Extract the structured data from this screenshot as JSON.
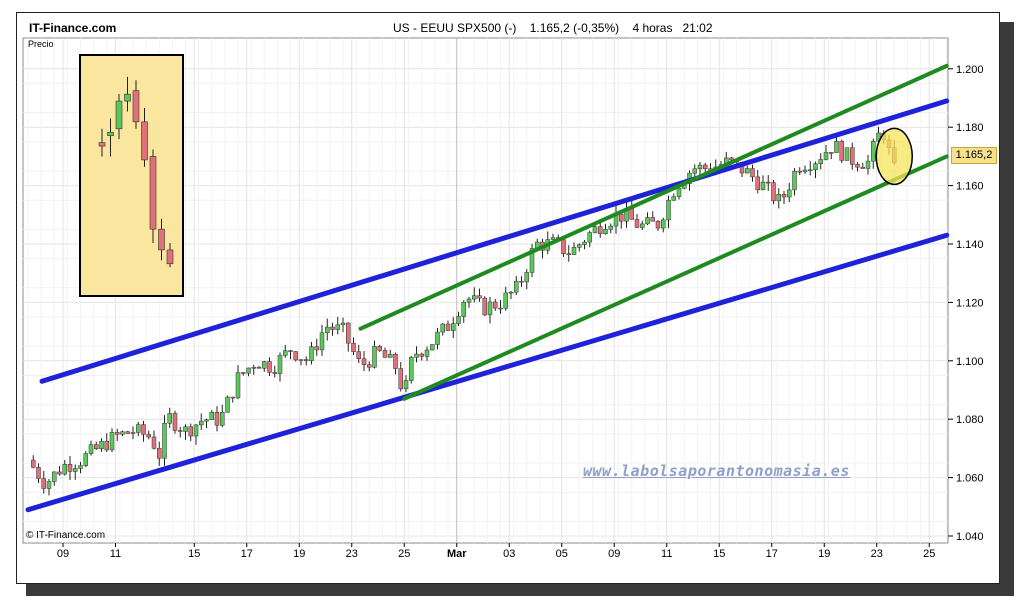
{
  "header": {
    "site": "IT-Finance.com",
    "instrument": "US - EEUU SPX500 (-)",
    "last_value": "1.165,2 (-0,35%)",
    "timeframe": "4 horas",
    "time": "21:02"
  },
  "y_axis_label": "Precio",
  "copyright": "© IT-Finance.com",
  "watermark": "www.labolsaporantonomasia.es",
  "last_price_tag": "1.165,2",
  "colors": {
    "up_candle": "#5cc85c",
    "down_candle": "#e0707a",
    "blue_channel": "#1f22d8",
    "green_channel": "#1f8a1f",
    "inset_bg": "#fbe6a0",
    "highlight_ellipse": "#f5e45a",
    "grid": "#e4e4e4"
  },
  "chart_data": {
    "type": "candlestick",
    "timeframe": "4 horas",
    "ylim": [
      1.04,
      1.205
    ],
    "yticks": [
      "1.040",
      "1.060",
      "1.080",
      "1.100",
      "1.120",
      "1.140",
      "1.160",
      "1.180",
      "1.200"
    ],
    "ytick_values": [
      1.04,
      1.06,
      1.08,
      1.1,
      1.12,
      1.14,
      1.16,
      1.18,
      1.2
    ],
    "xticks": [
      "09",
      "11",
      "15",
      "17",
      "19",
      "23",
      "25",
      "Mar",
      "03",
      "05",
      "09",
      "11",
      "15",
      "17",
      "19",
      "23",
      "25"
    ],
    "xlim_days": [
      0,
      52.5
    ],
    "xtick_days": [
      1,
      3,
      6,
      8,
      10,
      12,
      14,
      16,
      18,
      20,
      22,
      24,
      26,
      28,
      30,
      32,
      34
    ],
    "close_path": [
      [
        0,
        1.066
      ],
      [
        1,
        1.058
      ],
      [
        2,
        1.064
      ],
      [
        3,
        1.066
      ],
      [
        4,
        1.07
      ],
      [
        5,
        1.074
      ],
      [
        6,
        1.076
      ],
      [
        7,
        1.074
      ],
      [
        7.5,
        1.068
      ],
      [
        8,
        1.081
      ],
      [
        9,
        1.076
      ],
      [
        10,
        1.08
      ],
      [
        11,
        1.08
      ],
      [
        12,
        1.094
      ],
      [
        13,
        1.1
      ],
      [
        14,
        1.098
      ],
      [
        15,
        1.104
      ],
      [
        16,
        1.1
      ],
      [
        17,
        1.112
      ],
      [
        18,
        1.11
      ],
      [
        19,
        1.098
      ],
      [
        20,
        1.103
      ],
      [
        21,
        1.098
      ],
      [
        21.5,
        1.088
      ],
      [
        22,
        1.102
      ],
      [
        23,
        1.106
      ],
      [
        24,
        1.112
      ],
      [
        25,
        1.122
      ],
      [
        26,
        1.118
      ],
      [
        27,
        1.12
      ],
      [
        28,
        1.125
      ],
      [
        29,
        1.14
      ],
      [
        30,
        1.14
      ],
      [
        31,
        1.137
      ],
      [
        32,
        1.143
      ],
      [
        33,
        1.148
      ],
      [
        34,
        1.15
      ],
      [
        35,
        1.146
      ],
      [
        36,
        1.147
      ],
      [
        37,
        1.16
      ],
      [
        38,
        1.166
      ],
      [
        39,
        1.166
      ],
      [
        40,
        1.168
      ],
      [
        41,
        1.165
      ],
      [
        42,
        1.16
      ],
      [
        43,
        1.154
      ],
      [
        44,
        1.167
      ],
      [
        45,
        1.169
      ],
      [
        46,
        1.174
      ],
      [
        47,
        1.169
      ],
      [
        48,
        1.168
      ],
      [
        48.8,
        1.18
      ],
      [
        49.5,
        1.165
      ]
    ],
    "trendlines": [
      {
        "name": "blue-upper",
        "color": "blue",
        "from": [
          0.8,
          1.093
        ],
        "to": [
          52.5,
          1.189
        ]
      },
      {
        "name": "blue-lower",
        "color": "blue",
        "from": [
          0,
          1.049
        ],
        "to": [
          52.5,
          1.143
        ]
      },
      {
        "name": "green-upper",
        "color": "green",
        "from": [
          19,
          1.111
        ],
        "to": [
          52.5,
          1.201
        ]
      },
      {
        "name": "green-lower",
        "color": "green",
        "from": [
          21.5,
          1.087
        ],
        "to": [
          52.5,
          1.17
        ]
      }
    ],
    "highlight": {
      "center": [
        49.5,
        1.17
      ],
      "shape": "ellipse"
    },
    "inset": {
      "description": "zoom of last candles",
      "candles": [
        {
          "o": 1.162,
          "h": 1.166,
          "l": 1.158,
          "c": 1.161
        },
        {
          "o": 1.164,
          "h": 1.169,
          "l": 1.158,
          "c": 1.165
        },
        {
          "o": 1.166,
          "h": 1.176,
          "l": 1.163,
          "c": 1.174
        },
        {
          "o": 1.174,
          "h": 1.181,
          "l": 1.171,
          "c": 1.176
        },
        {
          "o": 1.177,
          "h": 1.18,
          "l": 1.166,
          "c": 1.168
        },
        {
          "o": 1.168,
          "h": 1.172,
          "l": 1.155,
          "c": 1.157
        },
        {
          "o": 1.158,
          "h": 1.16,
          "l": 1.133,
          "c": 1.137
        },
        {
          "o": 1.137,
          "h": 1.14,
          "l": 1.128,
          "c": 1.131
        },
        {
          "o": 1.131,
          "h": 1.133,
          "l": 1.126,
          "c": 1.127
        }
      ],
      "ylim": [
        1.12,
        1.185
      ]
    }
  }
}
